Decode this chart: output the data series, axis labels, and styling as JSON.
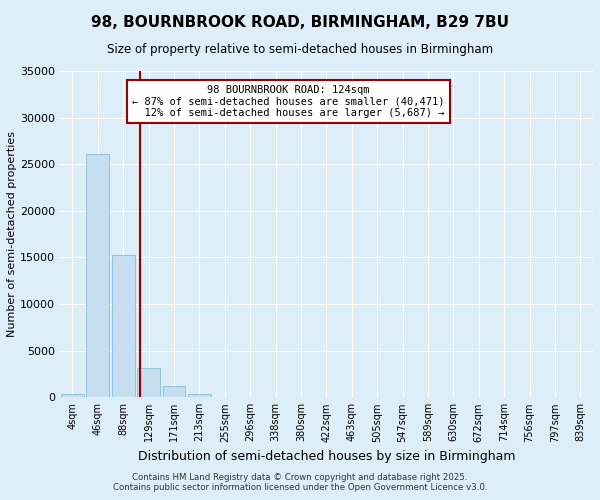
{
  "title": "98, BOURNBROOK ROAD, BIRMINGHAM, B29 7BU",
  "subtitle": "Size of property relative to semi-detached houses in Birmingham",
  "xlabel": "Distribution of semi-detached houses by size in Birmingham",
  "ylabel": "Number of semi-detached properties",
  "property_label": "98 BOURNBROOK ROAD: 124sqm",
  "pct_smaller": 87,
  "count_smaller": 40471,
  "pct_larger": 12,
  "count_larger": 5687,
  "bin_labels": [
    "4sqm",
    "46sqm",
    "88sqm",
    "129sqm",
    "171sqm",
    "213sqm",
    "255sqm",
    "296sqm",
    "338sqm",
    "380sqm",
    "422sqm",
    "463sqm",
    "505sqm",
    "547sqm",
    "589sqm",
    "630sqm",
    "672sqm",
    "714sqm",
    "756sqm",
    "797sqm",
    "839sqm"
  ],
  "bin_values": [
    400,
    26100,
    15300,
    3100,
    1200,
    400,
    50,
    0,
    0,
    0,
    0,
    0,
    0,
    0,
    0,
    0,
    0,
    0,
    0,
    0,
    0
  ],
  "bar_color": "#c5dff0",
  "bar_edge_color": "#88bcd8",
  "vline_color": "#990000",
  "vline_position": 2.65,
  "ylim": [
    0,
    35000
  ],
  "yticks": [
    0,
    5000,
    10000,
    15000,
    20000,
    25000,
    30000,
    35000
  ],
  "bg_color": "#ddeef8",
  "grid_color": "#ffffff",
  "footer_line1": "Contains HM Land Registry data © Crown copyright and database right 2025.",
  "footer_line2": "Contains public sector information licensed under the Open Government Licence v3.0."
}
